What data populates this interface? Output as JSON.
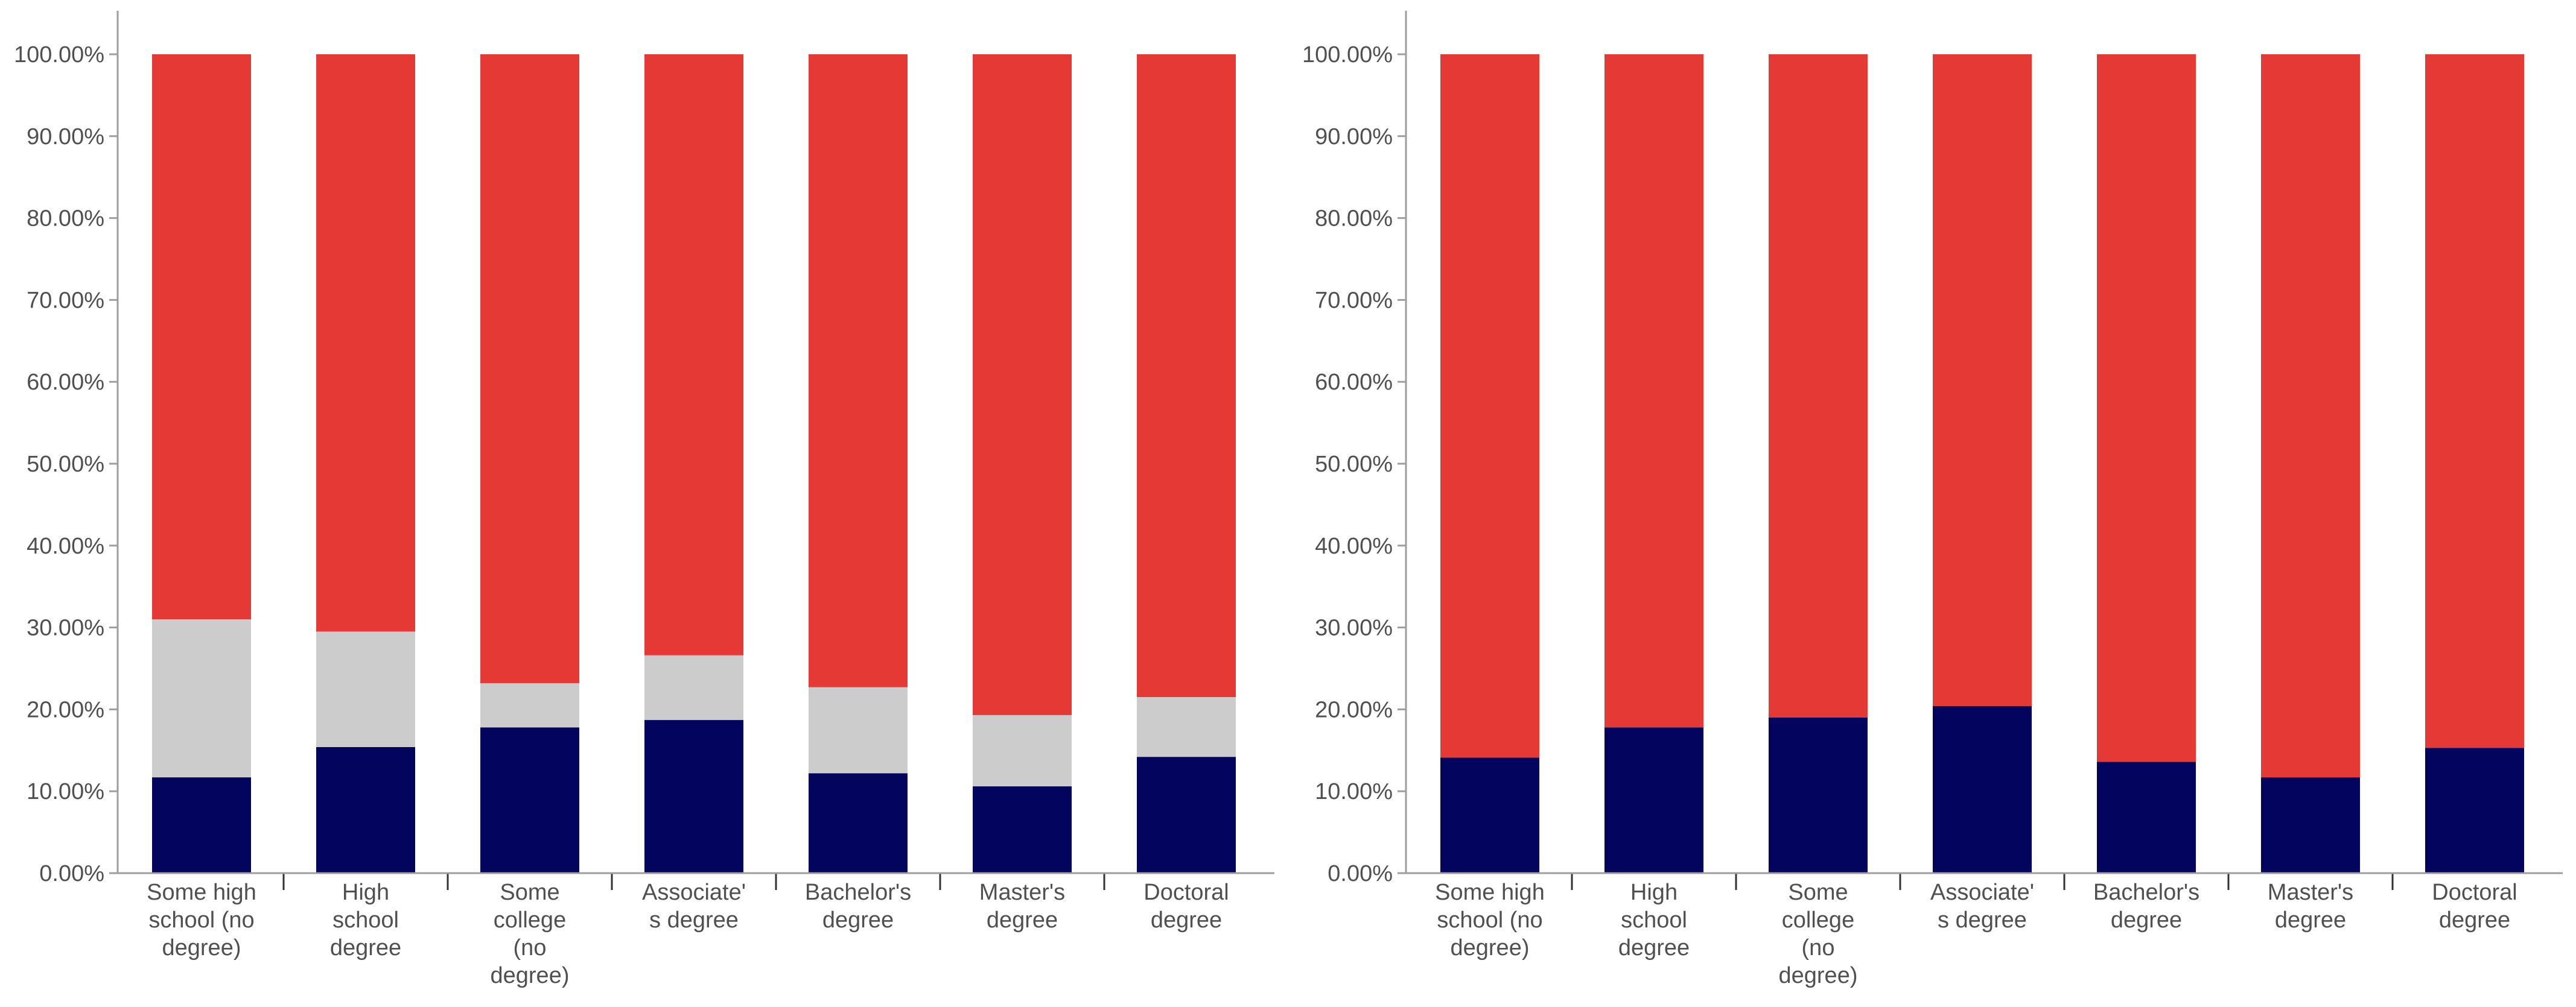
{
  "colors": {
    "bottom": "#03045E",
    "middle": "#CCCCCC",
    "top": "#E53935",
    "axis": "#9E9E9E",
    "text": "#505050"
  },
  "chart_data": [
    {
      "type": "bar",
      "stacked": true,
      "categories": [
        [
          "Some high",
          "school (no",
          "degree)"
        ],
        [
          "High",
          "school",
          "degree"
        ],
        [
          "Some",
          "college",
          "(no",
          "degree)"
        ],
        [
          "Associate'",
          "s degree"
        ],
        [
          "Bachelor's",
          "degree"
        ],
        [
          "Master's",
          "degree"
        ],
        [
          "Doctoral",
          "degree"
        ]
      ],
      "series": [
        {
          "name": "bottom",
          "color_key": "bottom",
          "values": [
            11.7,
            15.4,
            17.8,
            18.7,
            12.2,
            10.6,
            14.2
          ]
        },
        {
          "name": "middle",
          "color_key": "middle",
          "values": [
            19.3,
            14.1,
            5.4,
            7.9,
            10.5,
            8.7,
            7.3
          ]
        },
        {
          "name": "top",
          "color_key": "top",
          "values": [
            69.0,
            70.5,
            76.8,
            73.4,
            77.3,
            80.7,
            78.5
          ]
        }
      ],
      "yticks": [
        "0.00%",
        "10.00%",
        "20.00%",
        "30.00%",
        "40.00%",
        "50.00%",
        "60.00%",
        "70.00%",
        "80.00%",
        "90.00%",
        "100.00%"
      ],
      "ylim": [
        0,
        100
      ],
      "title": "",
      "xlabel": "",
      "ylabel": ""
    },
    {
      "type": "bar",
      "stacked": true,
      "categories": [
        [
          "Some high",
          "school (no",
          "degree)"
        ],
        [
          "High",
          "school",
          "degree"
        ],
        [
          "Some",
          "college",
          "(no",
          "degree)"
        ],
        [
          "Associate'",
          "s degree"
        ],
        [
          "Bachelor's",
          "degree"
        ],
        [
          "Master's",
          "degree"
        ],
        [
          "Doctoral",
          "degree"
        ]
      ],
      "series": [
        {
          "name": "bottom",
          "color_key": "bottom",
          "values": [
            14.1,
            17.8,
            19.0,
            20.4,
            13.6,
            11.7,
            15.3
          ]
        },
        {
          "name": "top",
          "color_key": "top",
          "values": [
            85.9,
            82.2,
            81.0,
            79.6,
            86.4,
            88.3,
            84.7
          ]
        }
      ],
      "yticks": [
        "0.00%",
        "10.00%",
        "20.00%",
        "30.00%",
        "40.00%",
        "50.00%",
        "60.00%",
        "70.00%",
        "80.00%",
        "90.00%",
        "100.00%"
      ],
      "ylim": [
        0,
        100
      ],
      "title": "",
      "xlabel": "",
      "ylabel": ""
    }
  ]
}
